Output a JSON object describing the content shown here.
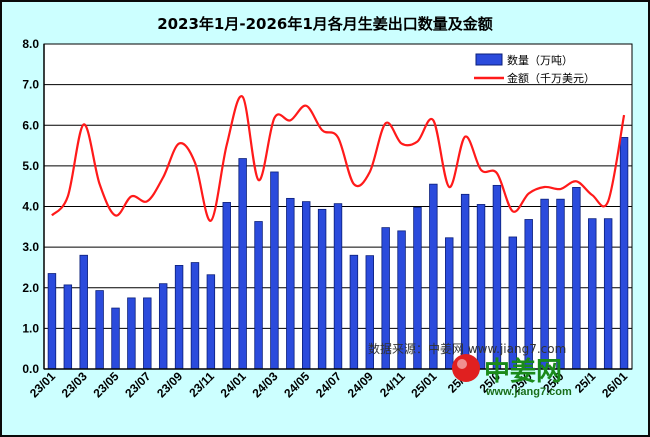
{
  "colors": {
    "background": "#ccffff",
    "plot_area": "#ffffff",
    "bar_fill": "#2b4bdc",
    "bar_stroke": "#0b1f7a",
    "line": "#ff1a1a",
    "grid": "#000000",
    "logo_green": "#1a8a1a",
    "logo_red": "#e02020"
  },
  "watermark": {
    "source_text": "数据来源：中姜网 www.jiang7.com",
    "logo_text": "中姜网",
    "logo_url": "www.jiang7.com"
  },
  "chart_data": {
    "type": "bar",
    "title": "2023年1月-2026年1月各月生姜出口数量及金额",
    "xlabel": "",
    "ylabel": "",
    "ylim": [
      0,
      8
    ],
    "yticks": [
      "0.0",
      "1.0",
      "2.0",
      "3.0",
      "4.0",
      "5.0",
      "6.0",
      "7.0",
      "8.0"
    ],
    "grid": true,
    "legend_position": "top-right",
    "x": [
      "23/01",
      "23/02",
      "23/03",
      "23/04",
      "23/05",
      "23/06",
      "23/07",
      "23/08",
      "23/09",
      "23/10",
      "23/11",
      "23/12",
      "24/01",
      "24/02",
      "24/03",
      "24/04",
      "24/05",
      "24/06",
      "24/07",
      "24/08",
      "24/09",
      "24/10",
      "24/11",
      "24/12",
      "25/01",
      "25/02",
      "25/03",
      "25/04",
      "25/05",
      "25/06",
      "25/07",
      "25/08",
      "25/09",
      "25/10",
      "25/11",
      "25/12",
      "26/01"
    ],
    "x_tick_labels": [
      "23/01",
      "23/03",
      "23/05",
      "23/07",
      "23/09",
      "23/11",
      "24/01",
      "24/03",
      "24/05",
      "24/07",
      "24/09",
      "24/11",
      "25/01",
      "25/03",
      "25/05",
      "25/07",
      "25/09",
      "25/11",
      "26/01"
    ],
    "x_tick_display": [
      "23/01",
      "23/03",
      "23/05",
      "23/07",
      "23/09",
      "23/11",
      "24/01",
      "24/03",
      "24/05",
      "24/07",
      "24/09",
      "24/11",
      "25/01",
      "25/0",
      "25/0",
      "25/0",
      "25/0",
      "25/1",
      "26/01"
    ],
    "series": [
      {
        "name": "数量（万吨）",
        "type": "bar",
        "values": [
          2.35,
          2.07,
          2.8,
          1.93,
          1.5,
          1.75,
          1.75,
          2.1,
          2.55,
          2.62,
          2.32,
          4.1,
          5.18,
          3.63,
          4.85,
          4.2,
          4.12,
          3.93,
          4.07,
          2.8,
          2.79,
          3.48,
          3.4,
          3.98,
          4.55,
          3.23,
          4.3,
          4.05,
          4.52,
          3.25,
          3.68,
          4.18,
          4.18,
          4.47,
          3.7,
          3.7,
          5.7
        ]
      },
      {
        "name": "金额（千万美元）",
        "type": "line",
        "values": [
          3.78,
          4.25,
          6.02,
          4.55,
          3.78,
          4.25,
          4.13,
          4.72,
          5.55,
          5.08,
          3.65,
          5.52,
          6.7,
          4.65,
          6.18,
          6.12,
          6.48,
          5.88,
          5.7,
          4.55,
          4.85,
          6.05,
          5.55,
          5.6,
          6.12,
          4.48,
          5.72,
          4.9,
          4.82,
          3.88,
          4.32,
          4.48,
          4.43,
          4.62,
          4.28,
          4.13,
          6.25
        ]
      }
    ]
  }
}
